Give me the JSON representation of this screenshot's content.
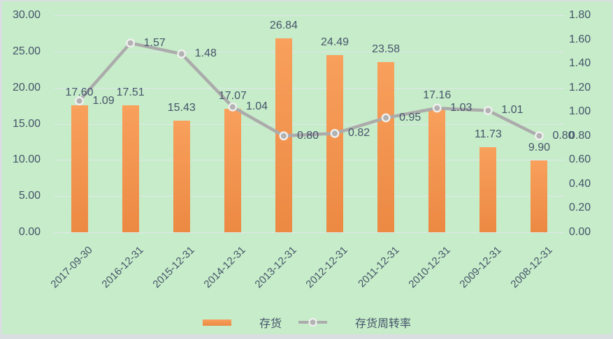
{
  "chart_data": {
    "type": "combo-bar-line",
    "title": "",
    "categories": [
      "2017-09-30",
      "2016-12-31",
      "2015-12-31",
      "2014-12-31",
      "2013-12-31",
      "2012-12-31",
      "2011-12-31",
      "2010-12-31",
      "2009-12-31",
      "2008-12-31"
    ],
    "series": [
      {
        "name": "存货",
        "chart_type": "bar",
        "axis": "primary",
        "values": [
          17.6,
          17.51,
          15.43,
          17.07,
          26.84,
          24.49,
          23.58,
          17.16,
          11.73,
          9.9
        ],
        "data_labels": [
          "17.60",
          "17.51",
          "15.43",
          "17.07",
          "26.84",
          "24.49",
          "23.58",
          "17.16",
          "11.73",
          "9.90"
        ]
      },
      {
        "name": "存货周转率",
        "chart_type": "line",
        "axis": "secondary",
        "values": [
          1.09,
          1.57,
          1.48,
          1.04,
          0.8,
          0.82,
          0.95,
          1.03,
          1.01,
          0.8
        ],
        "data_labels": [
          "1.09",
          "1.57",
          "1.48",
          "1.04",
          "0.80",
          "0.82",
          "0.95",
          "1.03",
          "1.01",
          "0.80"
        ]
      }
    ],
    "primary_axis": {
      "min": 0,
      "max": 30,
      "step": 5,
      "ticks": [
        "30.00",
        "25.00",
        "20.00",
        "15.00",
        "10.00",
        "5.00",
        "0.00"
      ]
    },
    "secondary_axis": {
      "min": 0,
      "max": 1.8,
      "step": 0.2,
      "ticks": [
        "1.80",
        "1.60",
        "1.40",
        "1.20",
        "1.00",
        "0.80",
        "0.60",
        "0.40",
        "0.20",
        "0.00"
      ]
    },
    "legend": {
      "position": "bottom",
      "items": [
        "存货",
        "存货周转率"
      ]
    },
    "grid": "horizontal-major-primary",
    "colors": {
      "background": "#C7ECC9",
      "frame_border": "#D9DFE1",
      "bar_top": "#F8A05C",
      "bar_bottom": "#EC8943",
      "line": "#ABABAB",
      "marker_fill": "#B2B2B2",
      "marker_ring": "#F0F0F0",
      "gridline": "#E0E7EB",
      "text": "#44546A"
    }
  }
}
